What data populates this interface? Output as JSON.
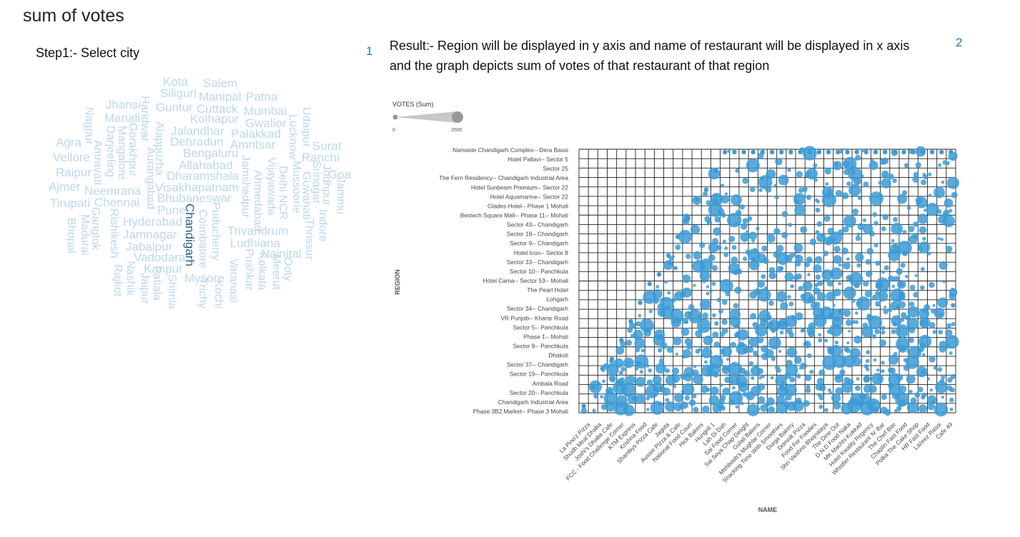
{
  "page": {
    "title": "sum of votes",
    "step1_label": "Step1:- Select city",
    "sheet1_number": "1",
    "sheet2_number": "2",
    "result_text": "Result:-  Region will be displayed in y axis and name of restaurant will be displayed in x axis and the graph depicts sum of votes of that restaurant of that region"
  },
  "wordcloud": {
    "selected": "Chandigarh",
    "colors": {
      "normal": "#bcd8ec",
      "selected": "#2a5d86"
    },
    "words": [
      "Kota",
      "Salem",
      "Siliguri",
      "Manipal",
      "Patna",
      "Jhansi",
      "Guntur",
      "Cuttack",
      "Mumbai",
      "Manali",
      "Kolhapur",
      "Gwalior",
      "Jalandhar",
      "Palakkad",
      "Dehradun",
      "Amritsar",
      "Surat",
      "Agra",
      "Bengaluru",
      "Ranchi",
      "Vellore",
      "Allahabad",
      "Goa",
      "Raipur",
      "Dharamshala",
      "Ajmer",
      "Neemrana",
      "Visakhapatnam",
      "Bhubaneswar",
      "Tirupati",
      "Chennai",
      "Pune",
      "Hyderabad",
      "Trivandrum",
      "Jamnagar",
      "Ludhiana",
      "Jabalpur",
      "Nainital",
      "Vadodara",
      "Kanpur",
      "Mysore",
      "Nagpur",
      "Amravati",
      "Darjeeling",
      "Mangalore",
      "Gorakhpur",
      "Haridwar",
      "Aurangabad",
      "Alappuzha",
      "Lucknow",
      "Udaipur",
      "Jodhpur",
      "Jammu",
      "Srinagar",
      "Guwahati",
      "Indore",
      "Thrissur",
      "Mussoorie",
      "Delhi NCR",
      "Vijayawada",
      "Ahmedabad",
      "Jamshedpur",
      "Kolkata",
      "Pushkar",
      "Varanasi",
      "Meerut",
      "Ooty",
      "Kochi",
      "Puducherry",
      "Coimbatore",
      "Trichy",
      "Chandigarh",
      "Shimla",
      "Patiala",
      "Jaipur",
      "Nashik",
      "Rajkot",
      "Rishikesh",
      "Madurai",
      "Gangtok",
      "Bhopal"
    ]
  },
  "size_legend": {
    "title": "VOTES (Sum)",
    "min_label": "0",
    "max_label": "2600",
    "color": "#c8c8c8"
  },
  "chart_data": {
    "type": "scatter",
    "xlabel": "NAME",
    "ylabel": "REGION",
    "size_measure": "VOTES (Sum)",
    "size_range": [
      0,
      2600
    ],
    "point_color": "#3b9bd6",
    "grid": true,
    "regions": [
      "Namaste Chandigarh Complex-- Dera Bassi",
      "Hotel Pallavi-- Sector 5",
      "Sector 25",
      "The Fern Residency-- Chandigarh Industrial Area",
      "Hotel Sunbeam Premium-- Sector 22",
      "Hotel Aquamarine-- Sector 22",
      "Glades Hotel-- Phase 1 Mohali",
      "Bestech Square Mall-- Phase 11-- Mohali",
      "Sector 43-- Chandigarh",
      "Sector 18-- Chandigarh",
      "Sector 9-- Chandigarh",
      "Hotel Icon-- Sector 8",
      "Sector 33-- Chandigarh",
      "Sector 10-- Panchkula",
      "Hotel Cama-- Sector 53-- Mohali",
      "The Pearl Hotel",
      "Lohgarh",
      "Sector 34-- Chandigarh",
      "VR Punjab-- Kharar Road",
      "Sector 5-- Panchkula",
      "Phase 1-- Mohali",
      "Sector 8-- Panchkula",
      "Dhakoli",
      "Sector 37-- Chandigarh",
      "Sector 19-- Panchkula",
      "Ambala Road",
      "Sector 20-- Panchkula",
      "Chandigarh Industrial Area",
      "Phase 3B2 Market-- Phase 3 Mohali"
    ],
    "names": [
      "La Pino'z Pizza",
      "Shudh Meal Dhaba",
      "Joshi's Dhaba Cafe",
      "FCC - Food Challenge Corner",
      "KTM Express",
      "Krishna Food",
      "Shambys Pizza Cafe",
      "Jagota",
      "Aussie Pizza & Cafe",
      "National Food Court",
      "Hick Bakers",
      "Hungrill 1",
      "Lah Di Dah",
      "Sai Food Corner",
      "Sai Soya Chap Delight",
      "Gulati Bakers",
      "Mehboob's Mughlai Corner",
      "Snacking Time With Smoothies",
      "Durga Bakery",
      "Domnik Pizza",
      "Food For Foodies",
      "Shri Vaishno Bhojnalaya",
      "The Dine Out",
      "D.N.D Food Naka",
      "MK Machhi Kukkad",
      "Hotel Kwality Regency",
      "Whistler Restaurant 'N' Bar",
      "The Chef Bite",
      "Chaplin Fast Food",
      "Polka The Cake Shop",
      "HR Fast Food",
      "Lazeez Rasoi",
      "Cafe 49"
    ],
    "seed": 7
  }
}
